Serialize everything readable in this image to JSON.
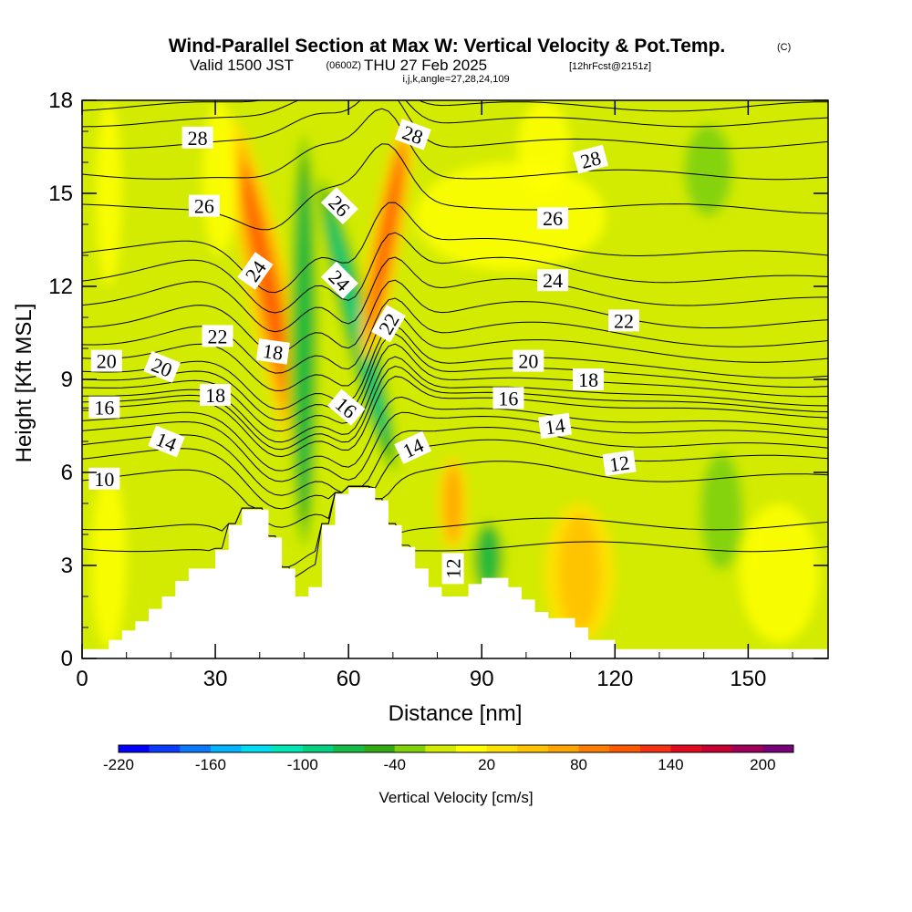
{
  "title": "Wind-Parallel Section at Max W: Vertical Velocity & Pot.Temp.",
  "copyright": "(C)",
  "subtitle_main": "Valid 1500 JST",
  "subtitle_utc": "(0600Z)",
  "subtitle_date": "THU 27 Feb 2025",
  "subtitle_fcst": "[12hrFcst@2151z]",
  "params_line": "i,j,k,angle=27,28,24,109",
  "chart_data": {
    "type": "cross-section",
    "xlabel": "Distance [nm]",
    "ylabel": "Height [Kft MSL]",
    "xlim": [
      0,
      168
    ],
    "ylim": [
      0,
      18
    ],
    "xticks": [
      0,
      30,
      60,
      90,
      120,
      150
    ],
    "yticks": [
      0,
      3,
      6,
      9,
      12,
      15,
      18
    ],
    "colorbar": {
      "title": "Vertical Velocity [cm/s]",
      "range": [
        -220,
        220
      ],
      "step": 20,
      "tick_values": [
        -220,
        -160,
        -100,
        -40,
        20,
        80,
        140,
        200
      ],
      "colors": [
        "#0000ff",
        "#0a3cff",
        "#0a78ff",
        "#00b4ff",
        "#00dcf0",
        "#00e6b4",
        "#00d282",
        "#14be46",
        "#32aa14",
        "#82d20a",
        "#d2eb00",
        "#ffff00",
        "#ffe100",
        "#ffc300",
        "#ffa500",
        "#ff7d00",
        "#ff5a00",
        "#f53214",
        "#e10a1e",
        "#c80032",
        "#a0005a",
        "#780078"
      ]
    },
    "terrain": [
      [
        0,
        0.3
      ],
      [
        6,
        0.3
      ],
      [
        6,
        0.6
      ],
      [
        9,
        0.6
      ],
      [
        9,
        0.9
      ],
      [
        12,
        0.9
      ],
      [
        12,
        1.2
      ],
      [
        15,
        1.2
      ],
      [
        15,
        1.6
      ],
      [
        18,
        1.6
      ],
      [
        18,
        2
      ],
      [
        21,
        2
      ],
      [
        21,
        2.5
      ],
      [
        24,
        2.5
      ],
      [
        24,
        2.9
      ],
      [
        30,
        2.9
      ],
      [
        30,
        3.5
      ],
      [
        33,
        3.5
      ],
      [
        33,
        4.3
      ],
      [
        36,
        4.3
      ],
      [
        36,
        4.8
      ],
      [
        42,
        4.8
      ],
      [
        42,
        3.9
      ],
      [
        45,
        3.9
      ],
      [
        45,
        2.9
      ],
      [
        48,
        2.9
      ],
      [
        48,
        2
      ],
      [
        51,
        2
      ],
      [
        51,
        2.3
      ],
      [
        54,
        2.3
      ],
      [
        54,
        4.3
      ],
      [
        57,
        4.3
      ],
      [
        57,
        5.3
      ],
      [
        60,
        5.3
      ],
      [
        60,
        5.5
      ],
      [
        66,
        5.5
      ],
      [
        66,
        5.1
      ],
      [
        69,
        5.1
      ],
      [
        69,
        4.3
      ],
      [
        72,
        4.3
      ],
      [
        72,
        3.6
      ],
      [
        75,
        3.6
      ],
      [
        75,
        2.9
      ],
      [
        78,
        2.9
      ],
      [
        78,
        2.3
      ],
      [
        81,
        2.3
      ],
      [
        81,
        2
      ],
      [
        87,
        2
      ],
      [
        87,
        2.4
      ],
      [
        90,
        2.4
      ],
      [
        90,
        2.6
      ],
      [
        96,
        2.6
      ],
      [
        96,
        2.3
      ],
      [
        99,
        2.3
      ],
      [
        99,
        1.9
      ],
      [
        102,
        1.9
      ],
      [
        102,
        1.5
      ],
      [
        105,
        1.5
      ],
      [
        105,
        1.3
      ],
      [
        111,
        1.3
      ],
      [
        111,
        1
      ],
      [
        114,
        1
      ],
      [
        114,
        0.6
      ],
      [
        120,
        0.6
      ],
      [
        120,
        0.3
      ],
      [
        168,
        0.3
      ]
    ],
    "theta_contours": {
      "unit": "deg C",
      "interval": 1,
      "base_height_kft": {
        "8": 3.6,
        "9": 4.3,
        "10": 5.8,
        "11": 6.4,
        "12": 6.8,
        "13": 7.2,
        "14": 7.5,
        "15": 7.9,
        "16": 8.1,
        "17": 8.3,
        "18": 8.6,
        "19": 8.9,
        "20": 9.2,
        "21": 9.7,
        "22": 10.2,
        "23": 10.8,
        "24": 11.5,
        "25": 12.2,
        "26": 13,
        "27": 14.5,
        "28": 15.6,
        "29": 16.6,
        "30": 17.3,
        "31": 17.8
      },
      "labels": [
        {
          "value": "28",
          "x": 26,
          "y": 16.8
        },
        {
          "value": "28",
          "x": 74.5,
          "y": 16.9
        },
        {
          "value": "28",
          "x": 114.5,
          "y": 16.1
        },
        {
          "value": "26",
          "x": 27.5,
          "y": 14.6
        },
        {
          "value": "26",
          "x": 58,
          "y": 14.6
        },
        {
          "value": "26",
          "x": 106,
          "y": 14.2
        },
        {
          "value": "24",
          "x": 39,
          "y": 12.5
        },
        {
          "value": "24",
          "x": 58,
          "y": 12.2
        },
        {
          "value": "24",
          "x": 106,
          "y": 12.2
        },
        {
          "value": "22",
          "x": 30.5,
          "y": 10.4
        },
        {
          "value": "22",
          "x": 69,
          "y": 10.8
        },
        {
          "value": "22",
          "x": 122,
          "y": 10.9
        },
        {
          "value": "20",
          "x": 5.5,
          "y": 9.6
        },
        {
          "value": "20",
          "x": 18,
          "y": 9.4
        },
        {
          "value": "20",
          "x": 100.5,
          "y": 9.6
        },
        {
          "value": "18",
          "x": 43,
          "y": 9.9
        },
        {
          "value": "18",
          "x": 30,
          "y": 8.5
        },
        {
          "value": "18",
          "x": 114,
          "y": 9
        },
        {
          "value": "16",
          "x": 5,
          "y": 8.1
        },
        {
          "value": "16",
          "x": 59.5,
          "y": 8.1
        },
        {
          "value": "16",
          "x": 96,
          "y": 8.4
        },
        {
          "value": "14",
          "x": 19,
          "y": 7
        },
        {
          "value": "14",
          "x": 74.5,
          "y": 6.8
        },
        {
          "value": "14",
          "x": 106.5,
          "y": 7.5
        },
        {
          "value": "12",
          "x": 121,
          "y": 6.3
        },
        {
          "value": "12",
          "x": 83.5,
          "y": 2.9
        },
        {
          "value": "10",
          "x": 5,
          "y": 5.8
        }
      ]
    },
    "vertical_velocity_features": [
      {
        "kind": "updraft",
        "x": [
          38,
          48
        ],
        "y": [
          5,
          17.5
        ],
        "peak_cms": 100
      },
      {
        "kind": "downdraft",
        "x": [
          58,
          66
        ],
        "y": [
          5.5,
          16
        ],
        "peak_cms": -90
      },
      {
        "kind": "updraft",
        "x": [
          65,
          72
        ],
        "y": [
          9.5,
          17.5
        ],
        "peak_cms": 90
      },
      {
        "kind": "downdraft",
        "x": [
          46,
          54
        ],
        "y": [
          3,
          17.5
        ],
        "peak_cms": -70
      },
      {
        "kind": "downdraft",
        "x": [
          87,
          96
        ],
        "y": [
          2,
          4.5
        ],
        "peak_cms": -80
      },
      {
        "kind": "updraft",
        "x": [
          80,
          87
        ],
        "y": [
          3.5,
          6.5
        ],
        "peak_cms": 60
      },
      {
        "kind": "downdraft",
        "x": [
          136,
          152
        ],
        "y": [
          2.5,
          7
        ],
        "peak_cms": -40
      },
      {
        "kind": "downdraft",
        "x": [
          132,
          150
        ],
        "y": [
          14,
          17.5
        ],
        "peak_cms": -40
      },
      {
        "kind": "updraft",
        "x": [
          104,
          120
        ],
        "y": [
          0.5,
          5
        ],
        "peak_cms": 25
      }
    ]
  }
}
